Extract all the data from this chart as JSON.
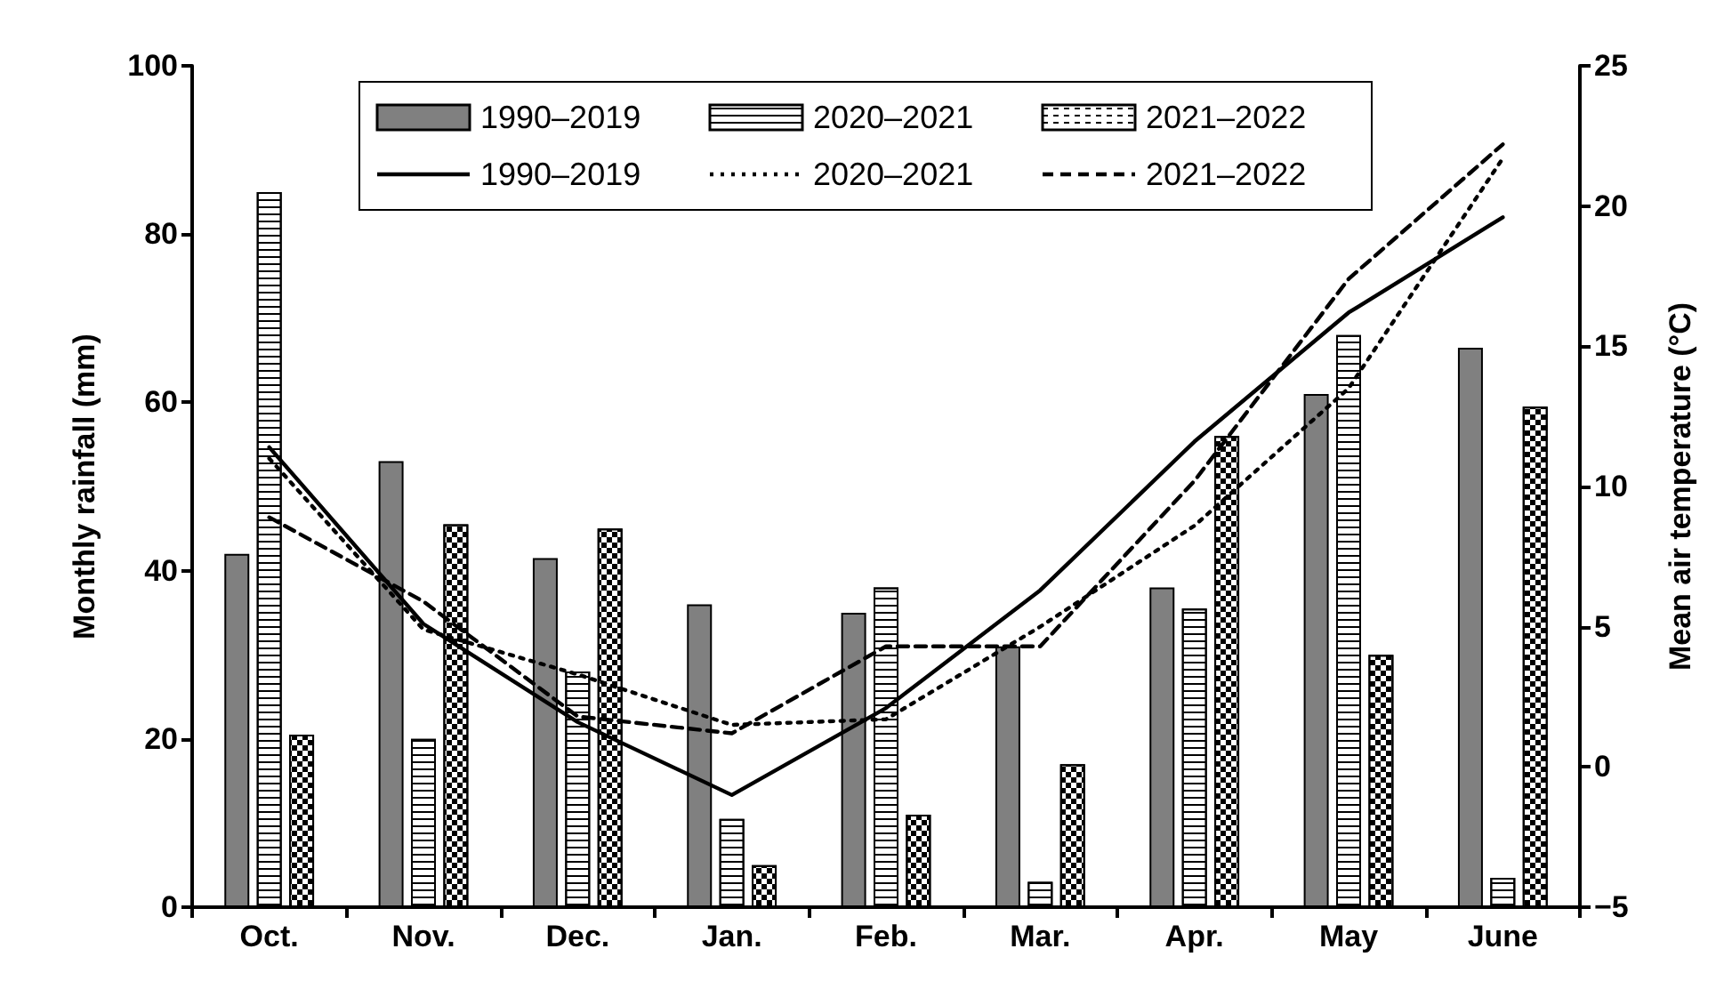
{
  "chart_data": {
    "type": "bar",
    "ylabel": "Monthly rainfall (mm)",
    "y2label": "Mean air temperature (°C)",
    "categories": [
      "Oct.",
      "Nov.",
      "Dec.",
      "Jan.",
      "Feb.",
      "Mar.",
      "Apr.",
      "May",
      "June"
    ],
    "series": [
      {
        "name": "1990–2019",
        "color": "#808080",
        "values": [
          42,
          53,
          41.5,
          36,
          35,
          31,
          38,
          61,
          66.5
        ]
      },
      {
        "name": "2020–2021",
        "color": "#ffffff",
        "values": [
          85,
          20,
          28,
          10.5,
          38,
          3,
          35.5,
          68,
          3.5
        ]
      },
      {
        "name": "2021–2022",
        "color": "#ffffff",
        "values": [
          20.5,
          45.5,
          45,
          5,
          11,
          17,
          56,
          30,
          59.5
        ]
      },
      {
        "name": "1990–2019",
        "type": "line",
        "axis": "y2",
        "color": "#000000",
        "line_style": "solid",
        "values": [
          11.4,
          5.1,
          1.6,
          -1,
          2.1,
          6.3,
          11.6,
          16.2,
          19.6
        ]
      },
      {
        "name": "2020–2021",
        "type": "line",
        "axis": "y2",
        "color": "#000000",
        "line_style": "dotted",
        "values": [
          11,
          4.9,
          3.3,
          1.5,
          1.7,
          5,
          8.6,
          13.5,
          21.7
        ]
      },
      {
        "name": "2021–2022",
        "type": "line",
        "axis": "y2",
        "color": "#000000",
        "line_style": "dashed",
        "values": [
          8.9,
          5.9,
          1.8,
          1.2,
          4.3,
          4.3,
          10.2,
          17.4,
          22.2
        ]
      }
    ],
    "ylim": [
      0,
      100
    ],
    "yticks": [
      0,
      20,
      40,
      60,
      80,
      100
    ],
    "y2lim": [
      -5,
      25
    ],
    "y2ticks": [
      {
        "value": -5,
        "label": "−5"
      },
      0,
      5,
      10,
      15,
      20,
      25
    ],
    "legend": "top",
    "grid": false,
    "marker": "none"
  }
}
